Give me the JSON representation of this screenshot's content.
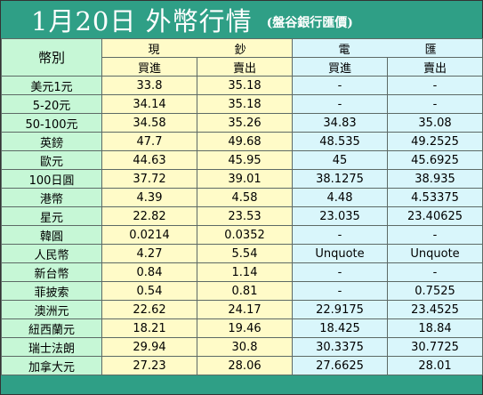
{
  "header": {
    "title": "1月20日 外幣行情",
    "subtitle": "(盤谷銀行匯價)"
  },
  "table": {
    "corner_label": "幣別",
    "cash_group": "現 鈔",
    "tt_group": "電 匯",
    "buy_label": "買進",
    "sell_label": "賣出",
    "rows": [
      {
        "currency": "美元1元",
        "cash_buy": "33.8",
        "cash_sell": "35.18",
        "tt_buy": "-",
        "tt_sell": "-"
      },
      {
        "currency": "5-20元",
        "cash_buy": "34.14",
        "cash_sell": "35.18",
        "tt_buy": "-",
        "tt_sell": "-"
      },
      {
        "currency": "50-100元",
        "cash_buy": "34.58",
        "cash_sell": "35.26",
        "tt_buy": "34.83",
        "tt_sell": "35.08"
      },
      {
        "currency": "英鎊",
        "cash_buy": "47.7",
        "cash_sell": "49.68",
        "tt_buy": "48.535",
        "tt_sell": "49.2525"
      },
      {
        "currency": "歐元",
        "cash_buy": "44.63",
        "cash_sell": "45.95",
        "tt_buy": "45",
        "tt_sell": "45.6925"
      },
      {
        "currency": "100日圓",
        "cash_buy": "37.72",
        "cash_sell": "39.01",
        "tt_buy": "38.1275",
        "tt_sell": "38.935"
      },
      {
        "currency": "港幣",
        "cash_buy": "4.39",
        "cash_sell": "4.58",
        "tt_buy": "4.48",
        "tt_sell": "4.53375"
      },
      {
        "currency": "星元",
        "cash_buy": "22.82",
        "cash_sell": "23.53",
        "tt_buy": "23.035",
        "tt_sell": "23.40625"
      },
      {
        "currency": "韓圓",
        "cash_buy": "0.0214",
        "cash_sell": "0.0352",
        "tt_buy": "-",
        "tt_sell": "-"
      },
      {
        "currency": "人民幣",
        "cash_buy": "4.27",
        "cash_sell": "5.54",
        "tt_buy": "Unquote",
        "tt_sell": "Unquote"
      },
      {
        "currency": "新台幣",
        "cash_buy": "0.84",
        "cash_sell": "1.14",
        "tt_buy": "-",
        "tt_sell": "-"
      },
      {
        "currency": "菲披索",
        "cash_buy": "0.54",
        "cash_sell": "0.81",
        "tt_buy": "-",
        "tt_sell": "0.7525"
      },
      {
        "currency": "澳洲元",
        "cash_buy": "22.62",
        "cash_sell": "24.17",
        "tt_buy": "22.9175",
        "tt_sell": "23.4525"
      },
      {
        "currency": "紐西蘭元",
        "cash_buy": "18.21",
        "cash_sell": "19.46",
        "tt_buy": "18.425",
        "tt_sell": "18.84"
      },
      {
        "currency": "瑞士法朗",
        "cash_buy": "29.94",
        "cash_sell": "30.8",
        "tt_buy": "30.3375",
        "tt_sell": "30.7725"
      },
      {
        "currency": "加拿大元",
        "cash_buy": "27.23",
        "cash_sell": "28.06",
        "tt_buy": "27.6625",
        "tt_sell": "28.01"
      }
    ]
  },
  "colors": {
    "header_bg": "#2f9f86",
    "label_col": "#c6f7d6",
    "cash_cols": "#fffbc8",
    "tt_cols": "#d9f6fb"
  }
}
